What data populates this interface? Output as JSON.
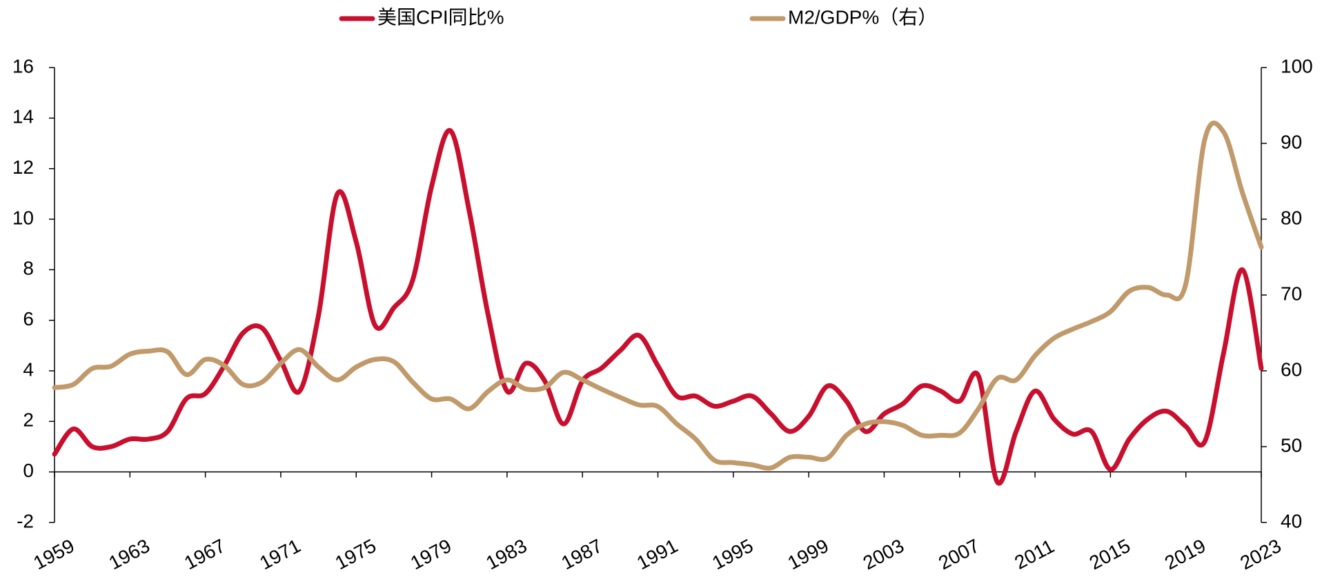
{
  "chart_data": {
    "type": "line",
    "x": [
      1959,
      1960,
      1961,
      1962,
      1963,
      1964,
      1965,
      1966,
      1967,
      1968,
      1969,
      1970,
      1971,
      1972,
      1973,
      1974,
      1975,
      1976,
      1977,
      1978,
      1979,
      1980,
      1981,
      1982,
      1983,
      1984,
      1985,
      1986,
      1987,
      1988,
      1989,
      1990,
      1991,
      1992,
      1993,
      1994,
      1995,
      1996,
      1997,
      1998,
      1999,
      2000,
      2001,
      2002,
      2003,
      2004,
      2005,
      2006,
      2007,
      2008,
      2009,
      2010,
      2011,
      2012,
      2013,
      2014,
      2015,
      2016,
      2017,
      2018,
      2019,
      2020,
      2021,
      2022,
      2023
    ],
    "series": [
      {
        "name": "美国CPI同比%",
        "color": "#c8102e",
        "values": [
          0.7,
          1.7,
          1.0,
          1.0,
          1.3,
          1.3,
          1.6,
          2.9,
          3.1,
          4.2,
          5.5,
          5.7,
          4.4,
          3.2,
          6.2,
          11.0,
          9.1,
          5.8,
          6.5,
          7.6,
          11.3,
          13.5,
          10.3,
          6.2,
          3.2,
          4.3,
          3.6,
          1.9,
          3.6,
          4.1,
          4.8,
          5.4,
          4.2,
          3.0,
          3.0,
          2.6,
          2.8,
          3.0,
          2.3,
          1.6,
          2.2,
          3.4,
          2.8,
          1.6,
          2.3,
          2.7,
          3.4,
          3.2,
          2.8,
          3.8,
          -0.4,
          1.6,
          3.2,
          2.1,
          1.5,
          1.6,
          0.1,
          1.3,
          2.1,
          2.4,
          1.8,
          1.2,
          4.7,
          8.0,
          4.1
        ]
      },
      {
        "name": "M2/GDP%（右）",
        "color": "#c19a6b",
        "axis": "y2",
        "values": [
          57.8,
          58.2,
          60.3,
          60.6,
          62.2,
          62.6,
          62.5,
          59.5,
          61.5,
          60.7,
          58.2,
          58.5,
          61.0,
          62.8,
          60.5,
          58.8,
          60.5,
          61.5,
          61.2,
          58.5,
          56.3,
          56.3,
          55.0,
          57.3,
          58.8,
          57.6,
          57.8,
          59.8,
          58.8,
          57.6,
          56.5,
          55.5,
          55.3,
          53.0,
          51.0,
          48.2,
          47.9,
          47.6,
          47.2,
          48.6,
          48.6,
          48.5,
          51.5,
          53.0,
          53.3,
          52.8,
          51.5,
          51.5,
          51.8,
          55.0,
          59.0,
          58.8,
          62.0,
          64.3,
          65.5,
          66.5,
          67.8,
          70.5,
          71.0,
          70.0,
          71.5,
          90.5,
          91.5,
          83.5,
          76.3
        ]
      }
    ],
    "xlim": [
      1959,
      2023
    ],
    "xticks": [
      1959,
      1963,
      1967,
      1971,
      1975,
      1979,
      1983,
      1987,
      1991,
      1995,
      1999,
      2003,
      2007,
      2011,
      2015,
      2019,
      2023
    ],
    "ylim": [
      -2,
      16
    ],
    "yticks": [
      -2,
      0,
      2,
      4,
      6,
      8,
      10,
      12,
      14,
      16
    ],
    "y2lim": [
      40,
      100
    ],
    "y2ticks": [
      40,
      50,
      60,
      70,
      80,
      90,
      100
    ],
    "legend": "top"
  }
}
